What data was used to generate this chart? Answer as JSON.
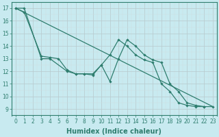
{
  "xlabel": "Humidex (Indice chaleur)",
  "x_all": [
    0,
    1,
    2,
    3,
    4,
    5,
    6,
    7,
    8,
    9,
    10,
    11,
    12,
    13,
    14,
    15,
    16,
    17,
    18,
    19,
    20,
    21,
    22,
    23
  ],
  "line1_x": [
    0,
    1,
    3,
    4,
    6,
    7,
    8,
    9,
    10,
    11,
    12,
    13,
    14,
    15,
    16,
    17,
    18,
    19,
    20,
    21,
    22,
    23
  ],
  "line1_y": [
    17,
    17,
    13,
    13,
    12.0,
    11.8,
    11.8,
    11.7,
    12.5,
    11.2,
    13.0,
    14.5,
    14.0,
    13.3,
    12.9,
    12.7,
    11.0,
    10.4,
    9.5,
    9.3,
    9.2,
    9.2
  ],
  "line2_x": [
    0,
    1,
    3,
    4,
    5,
    6,
    7,
    8,
    9,
    10,
    11,
    12,
    13,
    14,
    15,
    16,
    17,
    18,
    19,
    20,
    21,
    22
  ],
  "line2_y": [
    17,
    16.7,
    13.2,
    13.1,
    13.0,
    12.1,
    11.8,
    11.8,
    11.8,
    12.5,
    13.3,
    14.5,
    14.0,
    13.3,
    12.9,
    12.7,
    11.0,
    10.4,
    9.5,
    9.3,
    9.2,
    9.2
  ],
  "line3_x": [
    0,
    23
  ],
  "line3_y": [
    17,
    9.2
  ],
  "color": "#2e7d6e",
  "bg_color": "#c8eaf0",
  "grid_major_color": "#b8c8cc",
  "grid_minor_color": "#d0dde0",
  "ylim": [
    8.7,
    17.5
  ],
  "yticks": [
    9,
    10,
    11,
    12,
    13,
    14,
    15,
    16,
    17
  ],
  "xlim": [
    -0.5,
    23.5
  ],
  "tick_fontsize": 5.5,
  "xlabel_fontsize": 7.0
}
